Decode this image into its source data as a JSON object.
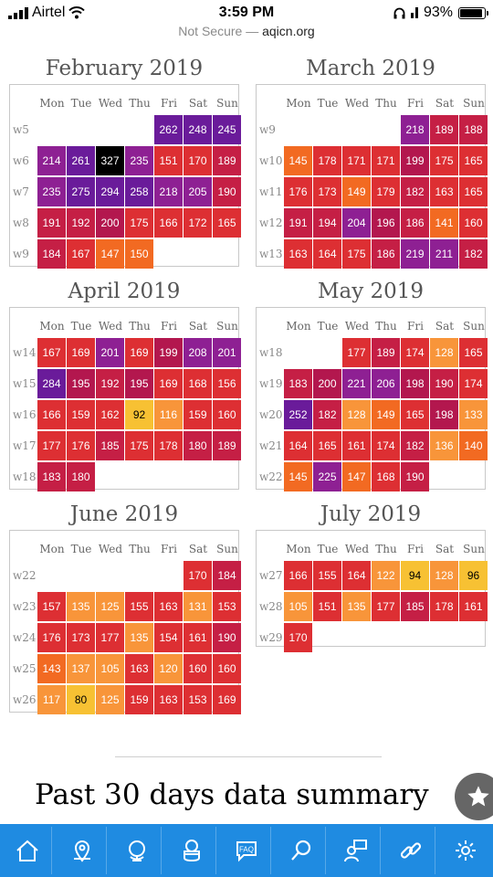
{
  "status_bar": {
    "carrier": "Airtel",
    "time": "3:59 PM",
    "battery": "93%"
  },
  "url_bar": {
    "security": "Not Secure",
    "separator": " — ",
    "domain": "aqicn.org"
  },
  "day_headers": [
    "Mon",
    "Tue",
    "Wed",
    "Thu",
    "Fri",
    "Sat",
    "Sun"
  ],
  "months": [
    {
      "title": "February 2019",
      "weeks": [
        {
          "label": "w5",
          "values": [
            null,
            null,
            null,
            null,
            262,
            248,
            245
          ]
        },
        {
          "label": "w6",
          "values": [
            214,
            261,
            327,
            235,
            151,
            170,
            189
          ]
        },
        {
          "label": "w7",
          "values": [
            235,
            275,
            294,
            258,
            218,
            205,
            190
          ]
        },
        {
          "label": "w8",
          "values": [
            191,
            192,
            200,
            175,
            166,
            172,
            165
          ]
        },
        {
          "label": "w9",
          "values": [
            184,
            167,
            147,
            150,
            null,
            null,
            null
          ]
        }
      ]
    },
    {
      "title": "March 2019",
      "weeks": [
        {
          "label": "w9",
          "values": [
            null,
            null,
            null,
            null,
            218,
            189,
            188
          ]
        },
        {
          "label": "w10",
          "values": [
            145,
            178,
            171,
            171,
            199,
            175,
            165
          ]
        },
        {
          "label": "w11",
          "values": [
            176,
            173,
            149,
            179,
            182,
            163,
            165
          ]
        },
        {
          "label": "w12",
          "values": [
            191,
            194,
            204,
            196,
            186,
            141,
            160
          ]
        },
        {
          "label": "w13",
          "values": [
            163,
            164,
            175,
            186,
            219,
            211,
            182
          ]
        }
      ]
    },
    {
      "title": "April 2019",
      "weeks": [
        {
          "label": "w14",
          "values": [
            167,
            169,
            201,
            169,
            199,
            208,
            201
          ]
        },
        {
          "label": "w15",
          "values": [
            284,
            195,
            192,
            195,
            169,
            168,
            156
          ]
        },
        {
          "label": "w16",
          "values": [
            166,
            159,
            162,
            92,
            116,
            159,
            160
          ]
        },
        {
          "label": "w17",
          "values": [
            177,
            176,
            185,
            175,
            178,
            180,
            189
          ]
        },
        {
          "label": "w18",
          "values": [
            183,
            180,
            null,
            null,
            null,
            null,
            null
          ]
        }
      ]
    },
    {
      "title": "May 2019",
      "weeks": [
        {
          "label": "w18",
          "values": [
            null,
            null,
            177,
            189,
            174,
            128,
            165
          ]
        },
        {
          "label": "w19",
          "values": [
            183,
            200,
            221,
            206,
            198,
            190,
            174
          ]
        },
        {
          "label": "w20",
          "values": [
            252,
            182,
            128,
            149,
            165,
            198,
            133
          ]
        },
        {
          "label": "w21",
          "values": [
            164,
            165,
            161,
            174,
            182,
            136,
            140
          ]
        },
        {
          "label": "w22",
          "values": [
            145,
            225,
            147,
            168,
            190,
            null,
            null
          ]
        }
      ]
    },
    {
      "title": "June 2019",
      "weeks": [
        {
          "label": "w22",
          "values": [
            null,
            null,
            null,
            null,
            null,
            170,
            184
          ]
        },
        {
          "label": "w23",
          "values": [
            157,
            135,
            125,
            155,
            163,
            131,
            153
          ]
        },
        {
          "label": "w24",
          "values": [
            176,
            173,
            177,
            135,
            154,
            161,
            190
          ]
        },
        {
          "label": "w25",
          "values": [
            143,
            137,
            105,
            163,
            120,
            160,
            160
          ]
        },
        {
          "label": "w26",
          "values": [
            117,
            80,
            125,
            159,
            163,
            153,
            169
          ]
        }
      ]
    },
    {
      "title": "July 2019",
      "weeks": [
        {
          "label": "w27",
          "values": [
            166,
            155,
            164,
            122,
            94,
            128,
            96
          ]
        },
        {
          "label": "w28",
          "values": [
            105,
            151,
            135,
            177,
            185,
            178,
            161
          ]
        },
        {
          "label": "w29",
          "values": [
            170,
            null,
            null,
            null,
            null,
            null,
            null
          ]
        }
      ]
    }
  ],
  "summary_title": "Past 30 days data summary",
  "tabbar": [
    "home-icon",
    "location-pin-icon",
    "globe-icon",
    "mask-icon",
    "faq-icon",
    "search-icon",
    "forum-icon",
    "link-icon",
    "settings-icon"
  ],
  "faq_label": "FAQ",
  "colors": {
    "tabbar": "#1f8be1",
    "hazardous": "#000000",
    "very_unhealthy": "#7b1d93",
    "unhealthy": "#d93039",
    "sensitive": "#f7842a",
    "moderate": "#f7c133"
  }
}
